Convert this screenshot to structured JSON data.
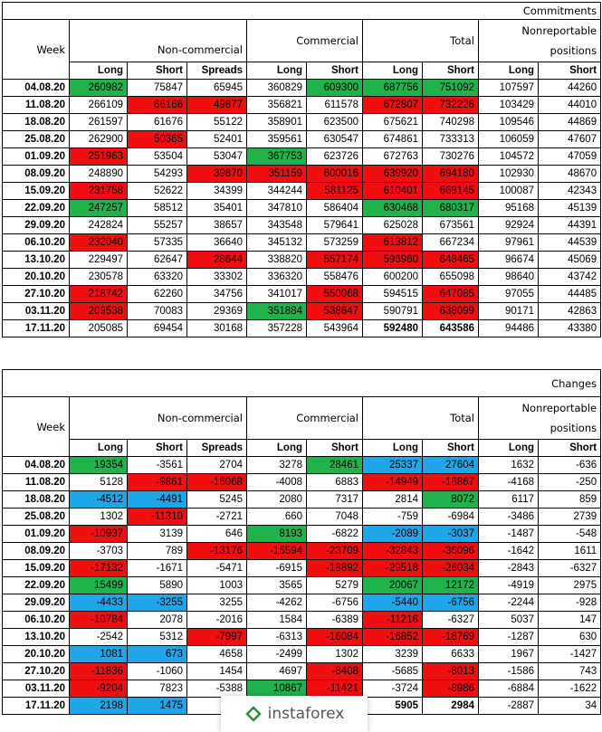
{
  "commitments": {
    "title": "Commitments",
    "headers": {
      "week": "Week",
      "noncommercial": "Non-commercial",
      "commercial": "Commercial",
      "total": "Total",
      "nonreportable": "Nonreportable positions",
      "long": "Long",
      "short": "Short",
      "spreads": "Spreads"
    },
    "rows": [
      {
        "cells": [
          "04.08.20",
          "260982",
          "75847",
          "65945",
          "360829",
          "609300",
          "687756",
          "751092",
          "107597",
          "44260"
        ],
        "colors": [
          "",
          "g",
          "",
          "",
          "",
          "g",
          "g",
          "g",
          "",
          ""
        ]
      },
      {
        "cells": [
          "11.08.20",
          "266109",
          "66166",
          "49877",
          "356821",
          "611578",
          "672807",
          "732226",
          "103429",
          "44010"
        ],
        "colors": [
          "",
          "",
          "r",
          "r",
          "",
          "",
          "r",
          "r",
          "",
          ""
        ]
      },
      {
        "cells": [
          "18.08.20",
          "261597",
          "61676",
          "55122",
          "358901",
          "623500",
          "675621",
          "740298",
          "109546",
          "44869"
        ],
        "colors": [
          "",
          "",
          "",
          "",
          "",
          "",
          "",
          "",
          "",
          ""
        ]
      },
      {
        "cells": [
          "25.08.20",
          "262900",
          "50365",
          "52401",
          "359561",
          "630547",
          "674861",
          "733313",
          "106059",
          "47607"
        ],
        "colors": [
          "",
          "",
          "r",
          "",
          "",
          "",
          "",
          "",
          "",
          ""
        ]
      },
      {
        "cells": [
          "01.09.20",
          "251963",
          "53504",
          "53047",
          "367753",
          "623726",
          "672763",
          "730276",
          "104572",
          "47059"
        ],
        "colors": [
          "",
          "r",
          "",
          "",
          "g",
          "",
          "",
          "",
          "",
          ""
        ]
      },
      {
        "cells": [
          "08.09.20",
          "248890",
          "54293",
          "39870",
          "351159",
          "600016",
          "639920",
          "694180",
          "102930",
          "48670"
        ],
        "colors": [
          "",
          "",
          "",
          "r",
          "r",
          "r",
          "r",
          "r",
          "",
          ""
        ]
      },
      {
        "cells": [
          "15.09.20",
          "231758",
          "52622",
          "34399",
          "344244",
          "581125",
          "610401",
          "668145",
          "100087",
          "42343"
        ],
        "colors": [
          "",
          "r",
          "",
          "",
          "",
          "r",
          "r",
          "r",
          "",
          ""
        ]
      },
      {
        "cells": [
          "22.09.20",
          "247257",
          "58512",
          "35401",
          "347810",
          "586404",
          "630468",
          "680317",
          "95168",
          "45139"
        ],
        "colors": [
          "",
          "g",
          "",
          "",
          "",
          "",
          "g",
          "g",
          "",
          ""
        ]
      },
      {
        "cells": [
          "29.09.20",
          "242824",
          "55257",
          "38657",
          "343548",
          "579641",
          "625028",
          "673561",
          "92924",
          "44391"
        ],
        "colors": [
          "",
          "",
          "",
          "",
          "",
          "",
          "",
          "",
          "",
          ""
        ]
      },
      {
        "cells": [
          "06.10.20",
          "232040",
          "57335",
          "36640",
          "345132",
          "573259",
          "613812",
          "667234",
          "97961",
          "44539"
        ],
        "colors": [
          "",
          "r",
          "",
          "",
          "",
          "",
          "r",
          "",
          "",
          ""
        ]
      },
      {
        "cells": [
          "13.10.20",
          "229497",
          "62647",
          "28644",
          "338820",
          "557174",
          "596960",
          "648465",
          "96674",
          "45069"
        ],
        "colors": [
          "",
          "",
          "",
          "r",
          "",
          "r",
          "r",
          "r",
          "",
          ""
        ]
      },
      {
        "cells": [
          "20.10.20",
          "230578",
          "63320",
          "33302",
          "336320",
          "558476",
          "600200",
          "655098",
          "98640",
          "43742"
        ],
        "colors": [
          "",
          "",
          "",
          "",
          "",
          "",
          "",
          "",
          "",
          ""
        ]
      },
      {
        "cells": [
          "27.10.20",
          "218742",
          "62260",
          "34756",
          "341017",
          "550068",
          "594515",
          "647085",
          "97055",
          "44485"
        ],
        "colors": [
          "",
          "r",
          "",
          "",
          "",
          "r",
          "",
          "r",
          "",
          ""
        ]
      },
      {
        "cells": [
          "03.11.20",
          "209538",
          "70083",
          "29369",
          "351884",
          "538647",
          "590791",
          "638099",
          "90171",
          "42863"
        ],
        "colors": [
          "",
          "r",
          "",
          "",
          "g",
          "r",
          "",
          "r",
          "",
          ""
        ]
      },
      {
        "cells": [
          "17.11.20",
          "205085",
          "69454",
          "30168",
          "357228",
          "543964",
          "592480",
          "643586",
          "94486",
          "43380"
        ],
        "colors": [
          "",
          "",
          "",
          "",
          "",
          "",
          "",
          "",
          "",
          ""
        ],
        "bold": [
          6,
          7
        ]
      }
    ]
  },
  "changes": {
    "title": "Changes",
    "rows": [
      {
        "cells": [
          "04.08.20",
          "19354",
          "-3561",
          "2704",
          "3278",
          "28461",
          "25337",
          "27604",
          "1632",
          "-636"
        ],
        "colors": [
          "",
          "g",
          "",
          "",
          "",
          "g",
          "b",
          "b",
          "",
          ""
        ]
      },
      {
        "cells": [
          "11.08.20",
          "5128",
          "-9861",
          "-16068",
          "-4008",
          "6883",
          "-14949",
          "-18867",
          "-4168",
          "-250"
        ],
        "colors": [
          "",
          "",
          "r",
          "r",
          "",
          "",
          "r",
          "r",
          "",
          ""
        ]
      },
      {
        "cells": [
          "18.08.20",
          "-4512",
          "-4491",
          "5245",
          "2080",
          "7317",
          "2814",
          "8072",
          "6117",
          "859"
        ],
        "colors": [
          "",
          "b",
          "b",
          "",
          "",
          "",
          "",
          "g",
          "",
          ""
        ]
      },
      {
        "cells": [
          "25.08.20",
          "1302",
          "-11310",
          "-2721",
          "660",
          "7048",
          "-759",
          "-6984",
          "-3486",
          "2739"
        ],
        "colors": [
          "",
          "",
          "r",
          "",
          "",
          "",
          "",
          "",
          "",
          ""
        ]
      },
      {
        "cells": [
          "01.09.20",
          "-10937",
          "3139",
          "646",
          "8193",
          "-6822",
          "-2089",
          "-3037",
          "-1487",
          "-548"
        ],
        "colors": [
          "",
          "r",
          "",
          "",
          "g",
          "",
          "b",
          "b",
          "",
          ""
        ]
      },
      {
        "cells": [
          "08.09.20",
          "-3703",
          "789",
          "-13176",
          "-16594",
          "-23709",
          "-32843",
          "-36096",
          "-1642",
          "1611"
        ],
        "colors": [
          "",
          "",
          "",
          "r",
          "r",
          "r",
          "r",
          "r",
          "",
          ""
        ]
      },
      {
        "cells": [
          "15.09.20",
          "-17132",
          "-1671",
          "-5471",
          "-6915",
          "-18892",
          "-29518",
          "-26034",
          "-2843",
          "-6327"
        ],
        "colors": [
          "",
          "r",
          "",
          "",
          "",
          "r",
          "r",
          "r",
          "",
          ""
        ]
      },
      {
        "cells": [
          "22.09.20",
          "15499",
          "5890",
          "1003",
          "3565",
          "5279",
          "20067",
          "12172",
          "-4919",
          "2975"
        ],
        "colors": [
          "",
          "g",
          "",
          "",
          "",
          "",
          "g",
          "g",
          "",
          ""
        ]
      },
      {
        "cells": [
          "29.09.20",
          "-4433",
          "-3255",
          "3255",
          "-4262",
          "-6756",
          "-5440",
          "-6756",
          "-2244",
          "-928"
        ],
        "colors": [
          "",
          "b",
          "b",
          "",
          "",
          "",
          "b",
          "b",
          "",
          ""
        ]
      },
      {
        "cells": [
          "06.10.20",
          "-10784",
          "2078",
          "-2016",
          "1584",
          "-6389",
          "-11216",
          "-6327",
          "5037",
          "147"
        ],
        "colors": [
          "",
          "r",
          "",
          "",
          "",
          "",
          "r",
          "",
          "",
          ""
        ]
      },
      {
        "cells": [
          "13.10.20",
          "-2542",
          "5312",
          "-7997",
          "-6313",
          "-16084",
          "-16852",
          "-18769",
          "-1287",
          "630"
        ],
        "colors": [
          "",
          "",
          "",
          "r",
          "",
          "r",
          "r",
          "r",
          "",
          ""
        ]
      },
      {
        "cells": [
          "20.10.20",
          "1081",
          "673",
          "4658",
          "-2499",
          "1302",
          "3239",
          "6633",
          "1967",
          "-1427"
        ],
        "colors": [
          "",
          "b",
          "b",
          "",
          "",
          "",
          "",
          "",
          "",
          ""
        ]
      },
      {
        "cells": [
          "27.10.20",
          "-11836",
          "-1060",
          "1454",
          "4697",
          "-8408",
          "-5685",
          "-8013",
          "-1586",
          "743"
        ],
        "colors": [
          "",
          "r",
          "",
          "",
          "",
          "r",
          "",
          "r",
          "",
          ""
        ]
      },
      {
        "cells": [
          "03.11.20",
          "-9204",
          "7823",
          "-5388",
          "10867",
          "-11421",
          "-3724",
          "-8986",
          "-6884",
          "-1622"
        ],
        "colors": [
          "",
          "r",
          "",
          "",
          "g",
          "r",
          "",
          "r",
          "",
          ""
        ]
      },
      {
        "cells": [
          "17.11.20",
          "2198",
          "1475",
          "3",
          "",
          "",
          "5905",
          "2984",
          "-2887",
          "34"
        ],
        "colors": [
          "",
          "b",
          "b",
          "",
          "",
          "",
          "",
          "",
          "",
          ""
        ],
        "bold": [
          6,
          7
        ]
      }
    ]
  },
  "watermark": {
    "text": "instaforex",
    "icon": "instaforex-logo-icon"
  }
}
